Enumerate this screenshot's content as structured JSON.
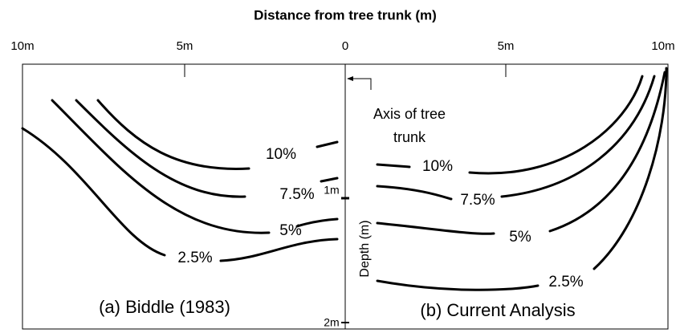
{
  "title": "Distance from tree trunk (m)",
  "top_ticks": [
    "10m",
    "5m",
    "0",
    "5m",
    "10m"
  ],
  "annotation": {
    "line1": "Axis of tree",
    "line2": "trunk"
  },
  "depth_axis": {
    "label": "Depth (m)",
    "ticks": [
      "1m",
      "2m"
    ]
  },
  "left_panel": {
    "label": "(a) Biddle (1983)",
    "contours": [
      "10%",
      "7.5%",
      "5%",
      "2.5%"
    ]
  },
  "right_panel": {
    "label": "(b) Current Analysis",
    "contours": [
      "10%",
      "7.5%",
      "5%",
      "2.5%"
    ]
  }
}
